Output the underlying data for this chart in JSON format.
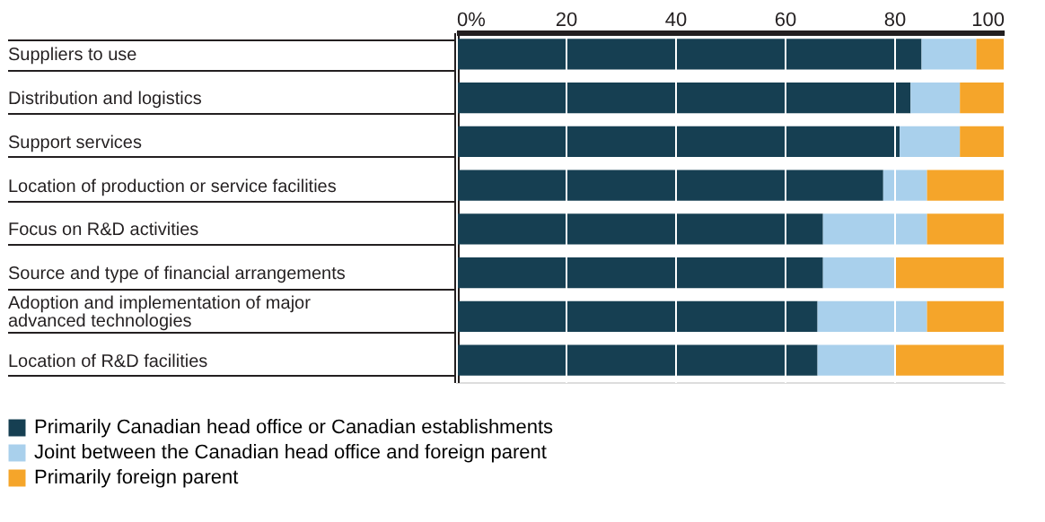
{
  "chart_data": {
    "type": "bar",
    "orientation": "horizontal",
    "stacked": true,
    "categories": [
      "Suppliers to use",
      "Distribution and logistics",
      "Support services",
      "Location of production or service facilities",
      "Focus on R&D activities",
      "Source and type of financial arrangements",
      "Adoption and implementation of major advanced technologies",
      "Location of R&D facilities"
    ],
    "series": [
      {
        "name": "Primarily Canadian head office or Canadian establishments",
        "color": "#163f52",
        "values": [
          85,
          83,
          81,
          78,
          67,
          67,
          66,
          66
        ]
      },
      {
        "name": "Joint between the Canadian head office and foreign parent",
        "color": "#a9d0ec",
        "values": [
          10,
          9,
          11,
          8,
          19,
          13,
          20,
          14
        ]
      },
      {
        "name": "Primarily foreign parent",
        "color": "#f5a52a",
        "values": [
          5,
          8,
          8,
          14,
          14,
          20,
          14,
          20
        ]
      }
    ],
    "xlim": [
      0,
      100
    ],
    "xticks": [
      {
        "value": 0,
        "label": "0%"
      },
      20,
      40,
      60,
      80,
      100
    ],
    "grid": "x",
    "legend": "bottom left"
  }
}
